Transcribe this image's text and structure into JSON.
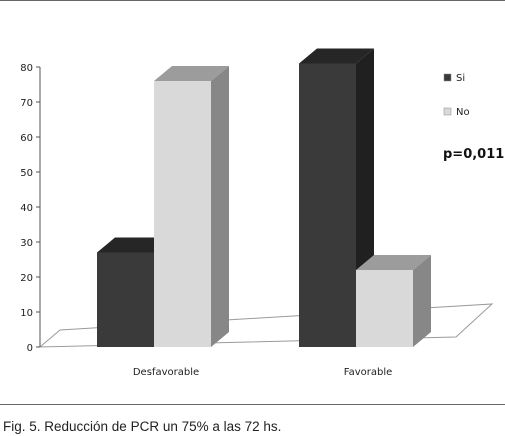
{
  "chart_data": {
    "type": "bar",
    "categories": [
      "Desfavorable",
      "Favorable"
    ],
    "series": [
      {
        "name": "Si",
        "values": [
          27,
          81
        ],
        "color": "#3a3a3a"
      },
      {
        "name": "No",
        "values": [
          76,
          22
        ],
        "color": "#d9d9d9"
      }
    ],
    "ylim": [
      0,
      80
    ],
    "yticks": [
      "0",
      "10",
      "20",
      "30",
      "40",
      "50",
      "60",
      "70",
      "80"
    ],
    "legend_position": "right",
    "annotation": "p=0,011",
    "grid": false,
    "style": "3d"
  },
  "caption": "Fig. 5. Reducción de PCR un 75% a las 72 hs."
}
